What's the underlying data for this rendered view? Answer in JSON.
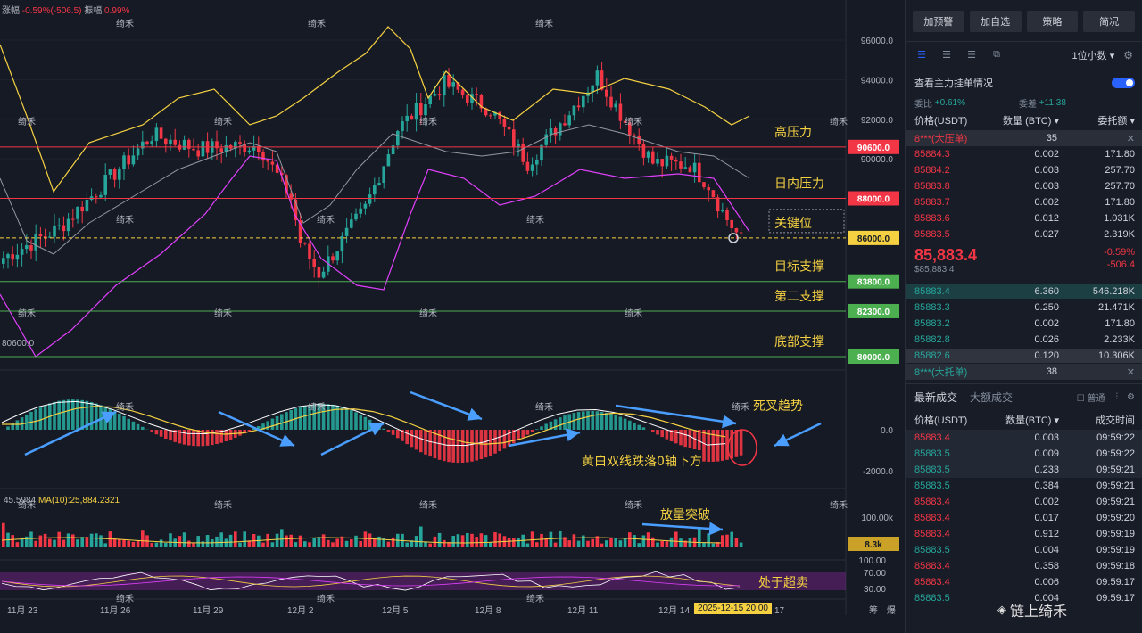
{
  "chart_header": {
    "change_label": "涨幅",
    "change_value": "-0.59%(-506.5)",
    "amplitude_label": "振幅",
    "amplitude_value": "0.99%"
  },
  "price_axis": [
    "96000.0",
    "94000.0",
    "92000.0",
    "90000.0"
  ],
  "price_axis_low": "80600.0",
  "levels": [
    {
      "label": "高压力",
      "value": "90600.0",
      "color": "#f23645"
    },
    {
      "label": "日内压力",
      "value": "88000.0",
      "color": "#f23645"
    },
    {
      "label": "关键位",
      "value": "86000.0",
      "color": "#f5d142"
    },
    {
      "label": "目标支撑",
      "value": "83800.0",
      "color": "#4caf50"
    },
    {
      "label": "第二支撑",
      "value": "82300.0",
      "color": "#4caf50"
    },
    {
      "label": "底部支撑",
      "value": "80000.0",
      "color": "#4caf50"
    }
  ],
  "macd_axis": [
    "0.0",
    "-2000.0"
  ],
  "macd_notes": {
    "death_cross": "死叉趋势",
    "below_zero": "黄白双线跌落0轴下方"
  },
  "volume": {
    "ma_left": "45.5984",
    "ma_label": "MA(10):25,884.2321",
    "axis": "100.00k",
    "current": "8.3k",
    "note": "放量突破"
  },
  "rsi": {
    "axis": [
      "100.00",
      "70.00",
      "30.00"
    ],
    "note": "处于超卖"
  },
  "x_axis": [
    "11月 23",
    "11月 26",
    "11月 29",
    "12月 2",
    "12月 5",
    "12月 8",
    "12月 11",
    "12月 14"
  ],
  "time_tag": "2025-12-15 20:00",
  "x_axis_tail": "17",
  "corner_icons": [
    "筹",
    "爆"
  ],
  "watermark_char": "绮禾",
  "right_panel": {
    "buttons": [
      "加预警",
      "加自选",
      "策略",
      "简况"
    ],
    "decimals": "1位小数",
    "check_label": "查看主力挂单情况",
    "ratio_label_1": "委比",
    "ratio_value_1": "+0.61%",
    "ratio_label_2": "委差",
    "ratio_value_2": "+11.38",
    "headers": {
      "price": "价格(USDT)",
      "qty": "数量 (BTC)",
      "depth": "委托额"
    },
    "big_sell": {
      "label": "8***(大压单)",
      "num": "35"
    },
    "asks": [
      {
        "price": "85884.3",
        "qty": "0.002",
        "total": "171.80"
      },
      {
        "price": "85884.2",
        "qty": "0.003",
        "total": "257.70"
      },
      {
        "price": "85883.8",
        "qty": "0.003",
        "total": "257.70"
      },
      {
        "price": "85883.7",
        "qty": "0.002",
        "total": "171.80"
      },
      {
        "price": "85883.6",
        "qty": "0.012",
        "total": "1.031K"
      },
      {
        "price": "85883.5",
        "qty": "0.027",
        "total": "2.319K"
      }
    ],
    "last_price": "85,883.4",
    "mark_price": "$85,883.4",
    "change_pct": "-0.59%",
    "change_abs": "-506.4",
    "bids": [
      {
        "price": "85883.4",
        "qty": "6.360",
        "total": "546.218K"
      },
      {
        "price": "85883.3",
        "qty": "0.250",
        "total": "21.471K"
      },
      {
        "price": "85883.2",
        "qty": "0.002",
        "total": "171.80"
      },
      {
        "price": "85882.8",
        "qty": "0.026",
        "total": "2.233K"
      },
      {
        "price": "85882.6",
        "qty": "0.120",
        "total": "10.306K"
      }
    ],
    "big_buy": {
      "label": "8***(大托单)",
      "num": "38"
    },
    "tabs": [
      "最新成交",
      "大额成交"
    ],
    "normal_label": "普通",
    "trade_headers": {
      "price": "价格(USDT)",
      "qty": "数量(BTC)",
      "time": "成交时间"
    },
    "trades": [
      {
        "price": "85883.4",
        "qty": "0.003",
        "time": "09:59:22",
        "side": "r"
      },
      {
        "price": "85883.5",
        "qty": "0.009",
        "time": "09:59:22",
        "side": "g"
      },
      {
        "price": "85883.5",
        "qty": "0.233",
        "time": "09:59:21",
        "side": "g"
      },
      {
        "price": "85883.5",
        "qty": "0.384",
        "time": "09:59:21",
        "side": "g"
      },
      {
        "price": "85883.4",
        "qty": "0.002",
        "time": "09:59:21",
        "side": "r"
      },
      {
        "price": "85883.4",
        "qty": "0.017",
        "time": "09:59:20",
        "side": "r"
      },
      {
        "price": "85883.4",
        "qty": "0.912",
        "time": "09:59:19",
        "side": "r"
      },
      {
        "price": "85883.5",
        "qty": "0.004",
        "time": "09:59:19",
        "side": "g"
      },
      {
        "price": "85883.4",
        "qty": "0.358",
        "time": "09:59:18",
        "side": "r"
      },
      {
        "price": "85883.4",
        "qty": "0.006",
        "time": "09:59:17",
        "side": "r"
      },
      {
        "price": "85883.5",
        "qty": "0.004",
        "time": "09:59:17",
        "side": "g"
      }
    ],
    "footer_brand": "链上绮禾"
  },
  "colors": {
    "up": "#26a69a",
    "down": "#f23645",
    "accent": "#2962ff",
    "yellow": "#f5d142"
  }
}
